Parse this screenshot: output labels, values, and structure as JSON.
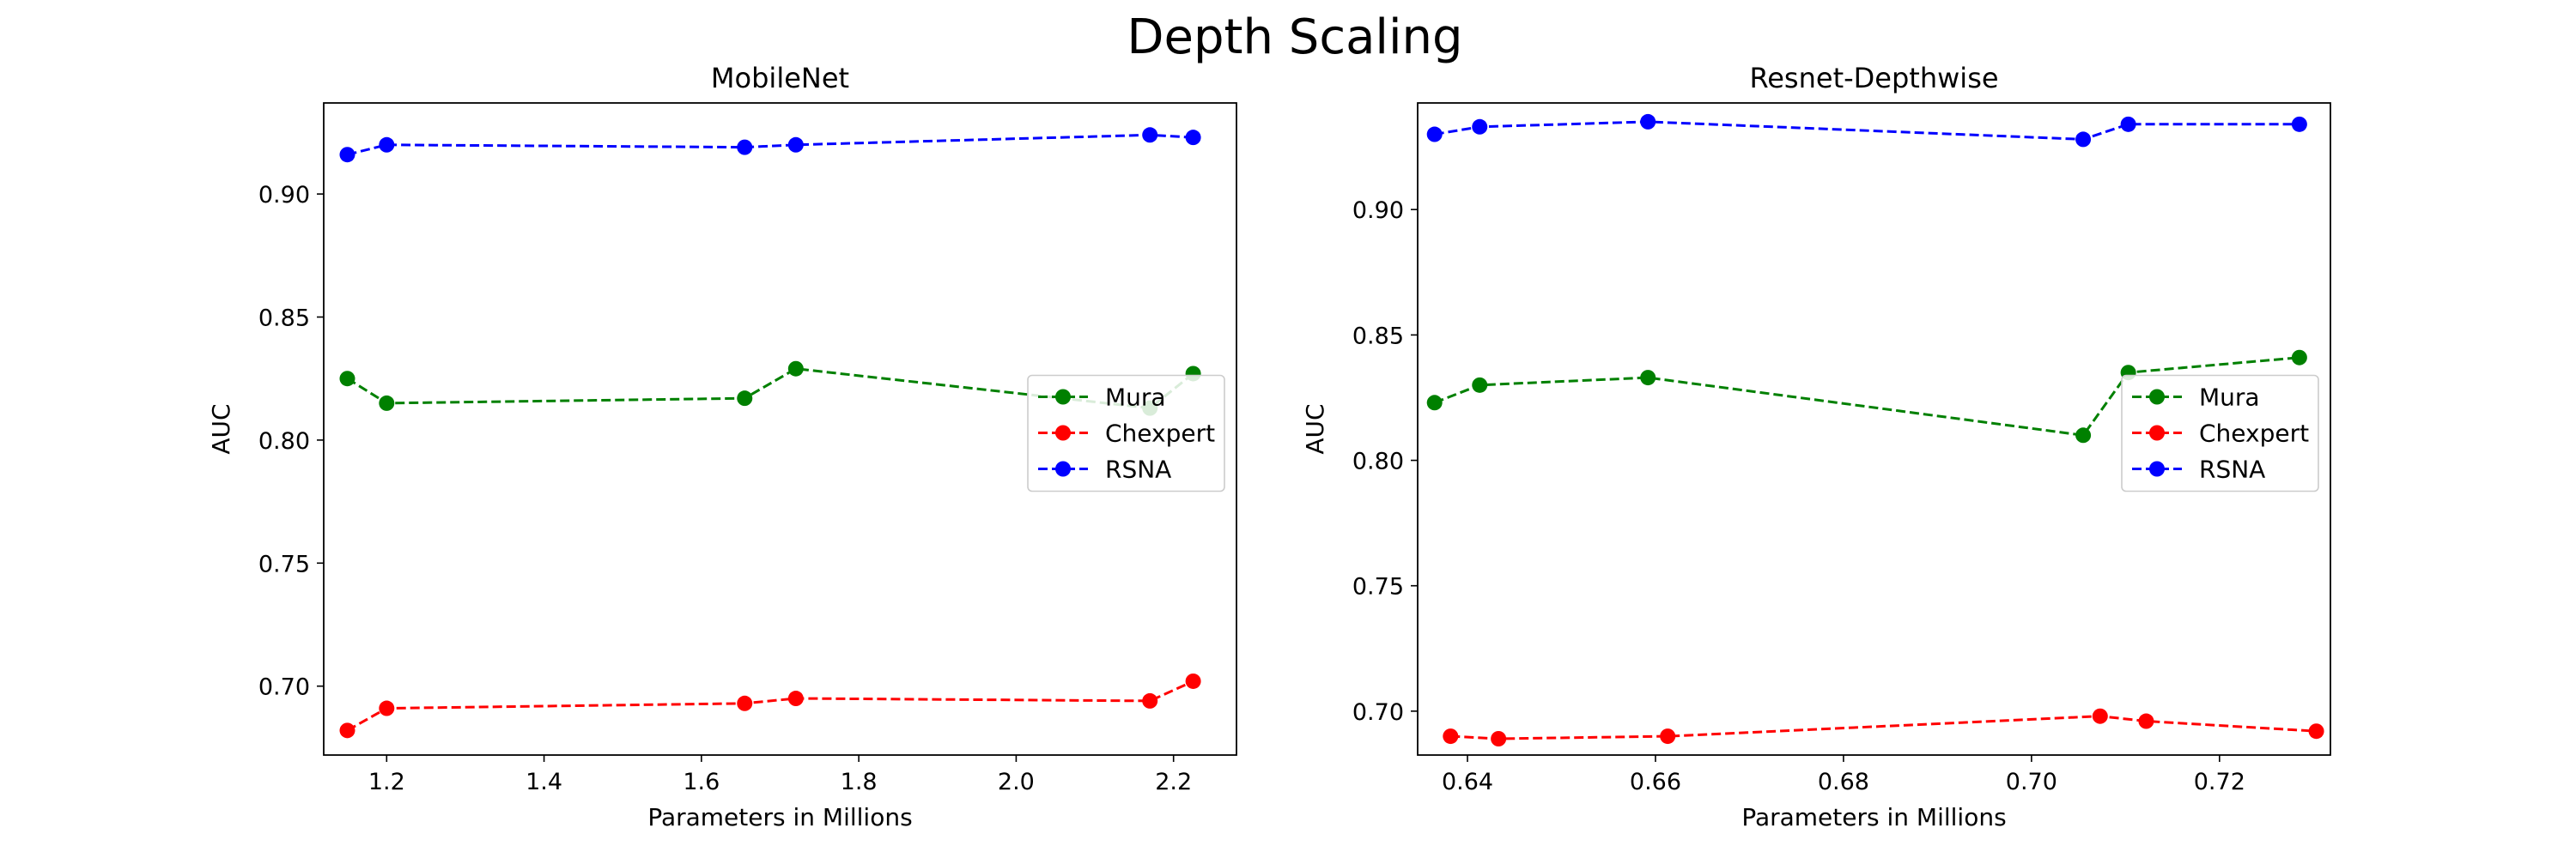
{
  "suptitle": "Depth Scaling",
  "chart_data": [
    {
      "type": "line",
      "title": "MobileNet",
      "xlabel": "Parameters in Millions",
      "ylabel": "AUC",
      "xlim": [
        1.12,
        2.28
      ],
      "ylim": [
        0.672,
        0.937
      ],
      "xticks": [
        1.2,
        1.4,
        1.6,
        1.8,
        2.0,
        2.2
      ],
      "xtick_labels": [
        "1.2",
        "1.4",
        "1.6",
        "1.8",
        "2.0",
        "2.2"
      ],
      "yticks": [
        0.7,
        0.75,
        0.8,
        0.85,
        0.9
      ],
      "ytick_labels": [
        "0.70",
        "0.75",
        "0.80",
        "0.85",
        "0.90"
      ],
      "legend_position": "center-right",
      "series": [
        {
          "name": "Mura",
          "color": "#008000",
          "x": [
            1.15,
            1.2,
            1.655,
            1.72,
            2.17,
            2.225
          ],
          "y": [
            0.825,
            0.815,
            0.817,
            0.829,
            0.813,
            0.827
          ]
        },
        {
          "name": "Chexpert",
          "color": "#ff0000",
          "x": [
            1.15,
            1.2,
            1.655,
            1.72,
            2.17,
            2.225
          ],
          "y": [
            0.682,
            0.691,
            0.693,
            0.695,
            0.694,
            0.702
          ]
        },
        {
          "name": "RSNA",
          "color": "#0000ff",
          "x": [
            1.15,
            1.2,
            1.655,
            1.72,
            2.17,
            2.225
          ],
          "y": [
            0.916,
            0.92,
            0.919,
            0.92,
            0.924,
            0.923
          ]
        }
      ]
    },
    {
      "type": "line",
      "title": "Resnet-Depthwise",
      "xlabel": "Parameters in Millions",
      "ylabel": "AUC",
      "xlim": [
        0.6347,
        0.7318
      ],
      "ylim": [
        0.6825,
        0.9425
      ],
      "xticks": [
        0.64,
        0.66,
        0.68,
        0.7,
        0.72
      ],
      "xtick_labels": [
        "0.64",
        "0.66",
        "0.68",
        "0.70",
        "0.72"
      ],
      "yticks": [
        0.7,
        0.75,
        0.8,
        0.85,
        0.9
      ],
      "ytick_labels": [
        "0.70",
        "0.75",
        "0.80",
        "0.85",
        "0.90"
      ],
      "legend_position": "center-right",
      "series": [
        {
          "name": "Mura",
          "color": "#008000",
          "x": [
            0.6365,
            0.6413,
            0.6592,
            0.7055,
            0.7103,
            0.7285
          ],
          "y": [
            0.823,
            0.83,
            0.833,
            0.81,
            0.835,
            0.841
          ]
        },
        {
          "name": "Chexpert",
          "color": "#ff0000",
          "x": [
            0.6382,
            0.6433,
            0.6613,
            0.7073,
            0.7122,
            0.7303
          ],
          "y": [
            0.69,
            0.689,
            0.69,
            0.698,
            0.696,
            0.692
          ]
        },
        {
          "name": "RSNA",
          "color": "#0000ff",
          "x": [
            0.6365,
            0.6413,
            0.6592,
            0.7055,
            0.7103,
            0.7285
          ],
          "y": [
            0.93,
            0.933,
            0.935,
            0.928,
            0.934,
            0.934
          ]
        }
      ]
    }
  ]
}
